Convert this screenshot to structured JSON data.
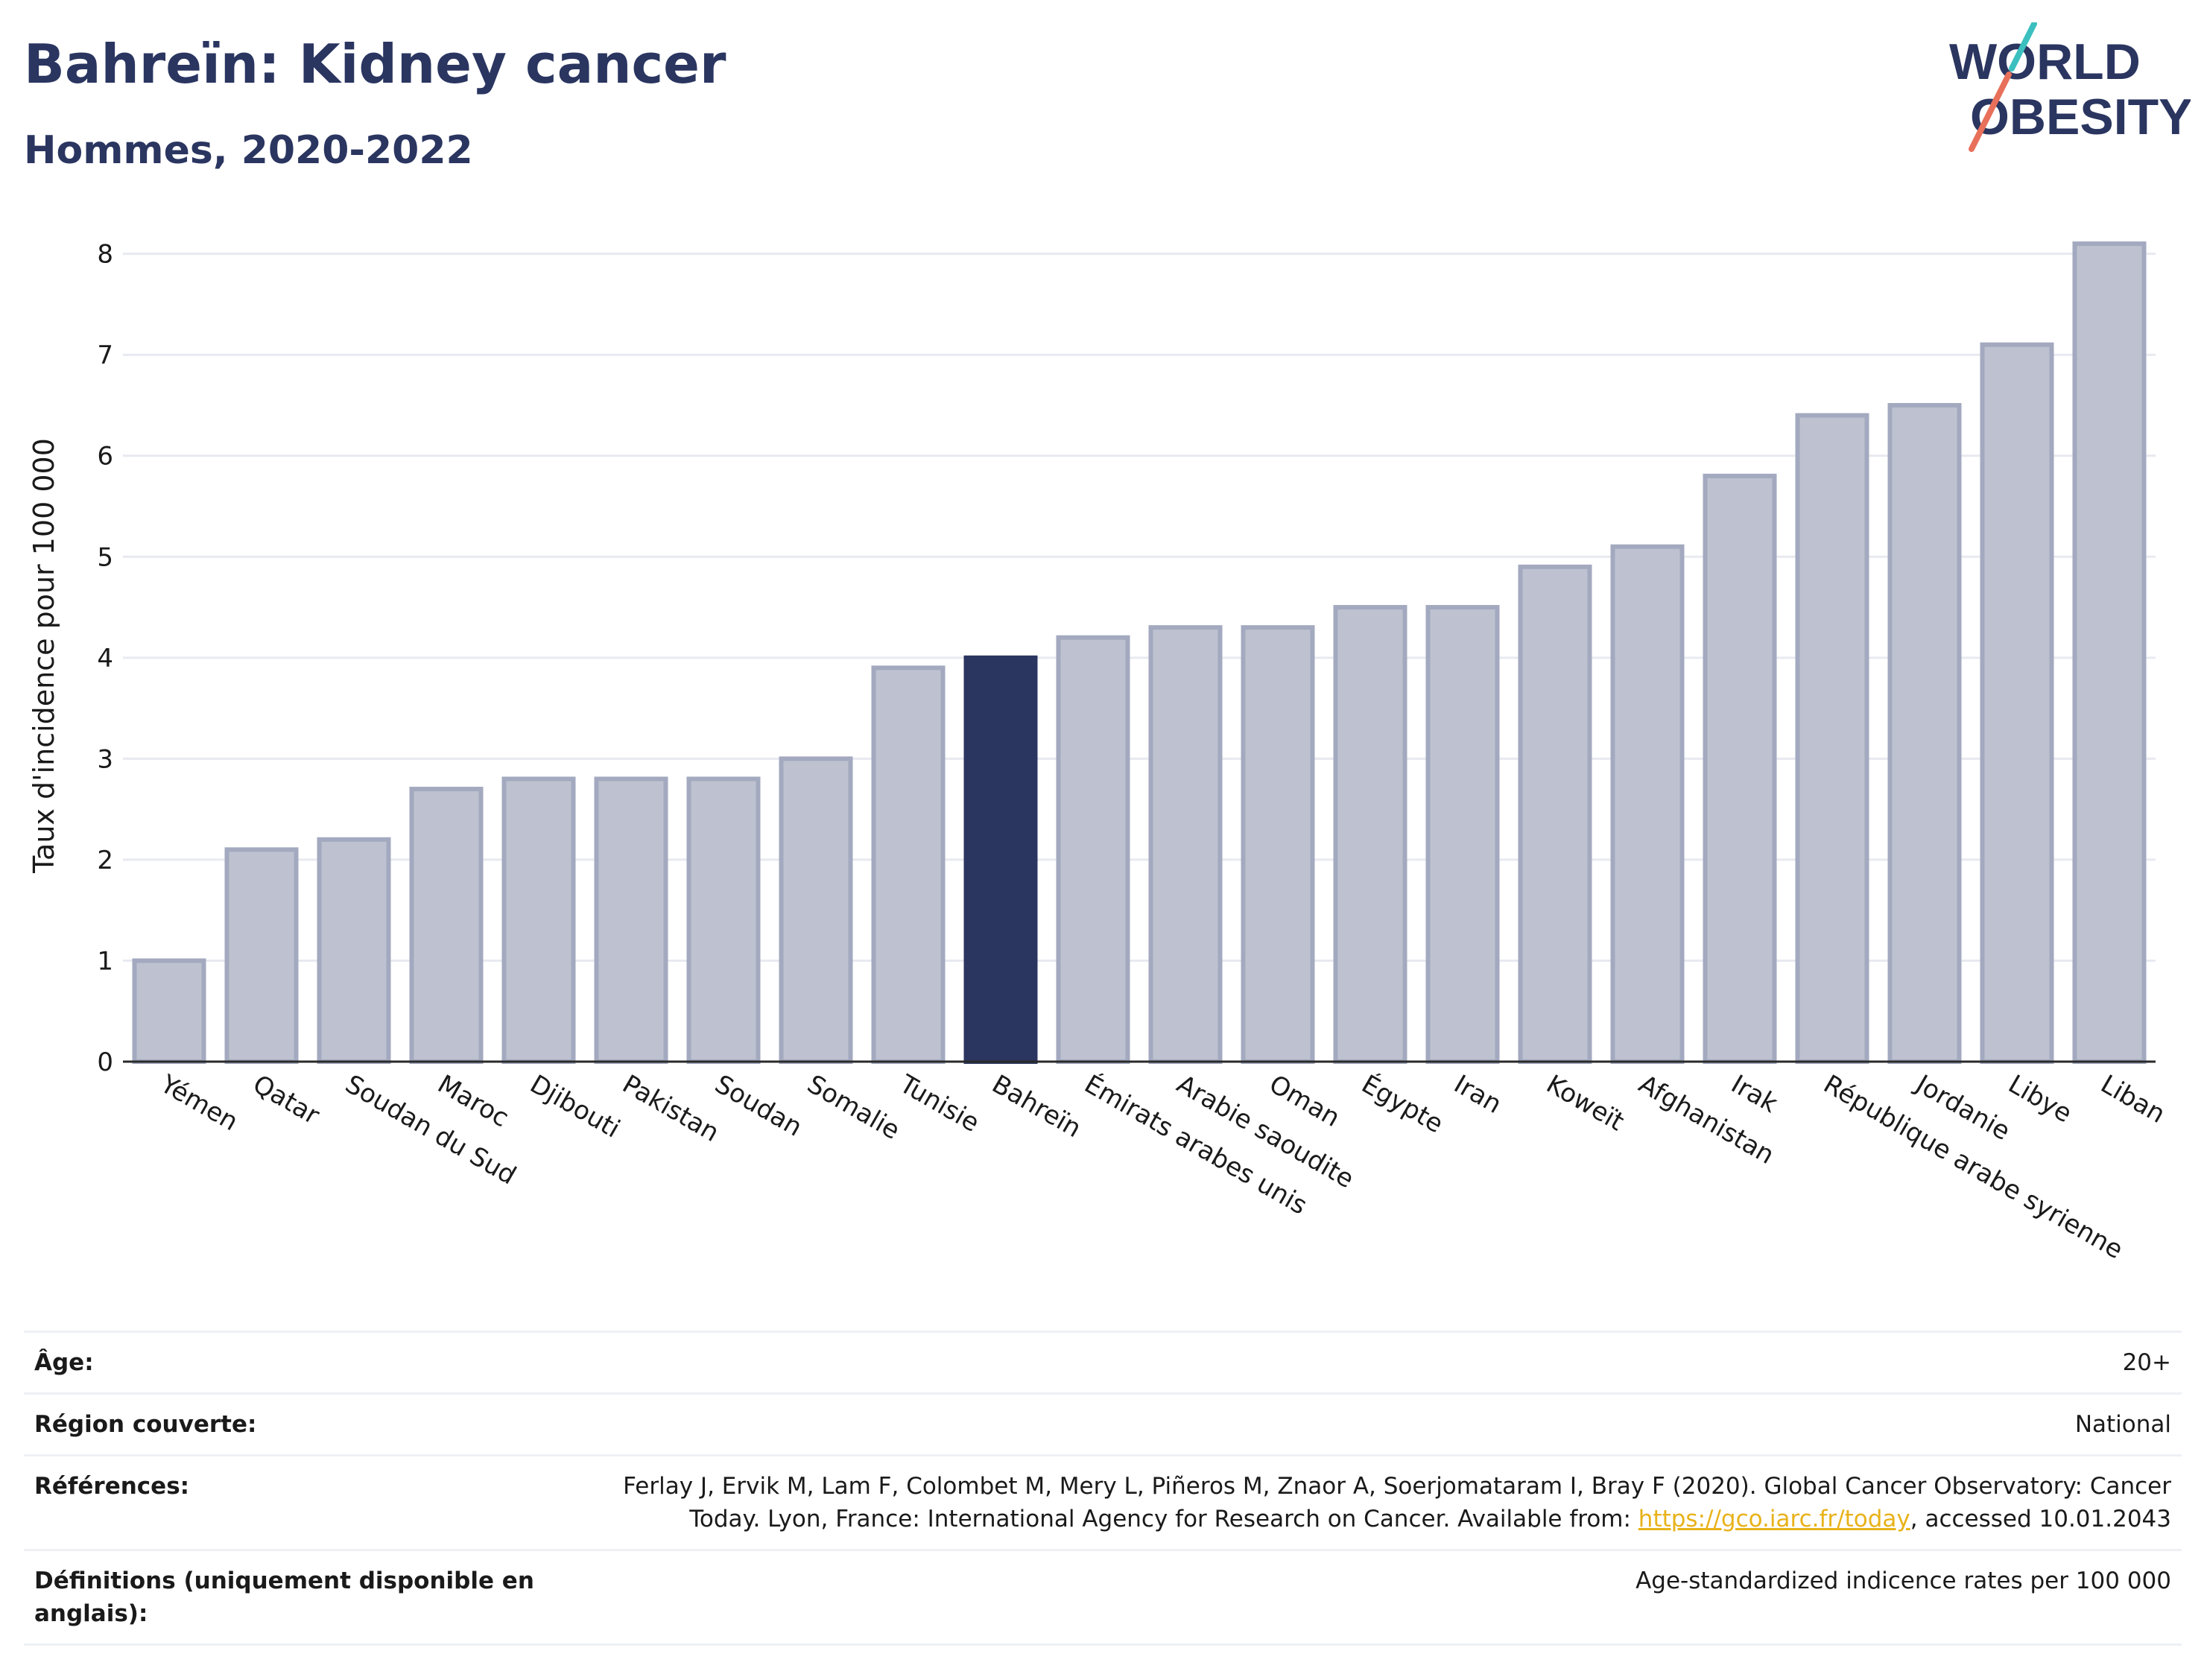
{
  "title": "Bahreïn: Kidney cancer",
  "subtitle": "Hommes, 2020-2022",
  "logo": {
    "line1": "WORLD",
    "line2": "OBESITY"
  },
  "colors": {
    "bar": "#bec2d0",
    "bar_border": "#a3a9bf",
    "highlight": "#2a3560",
    "text": "#2a3560",
    "grid": "#e8eaf0",
    "logo_teal": "#3bbfbf",
    "logo_red": "#e8705a",
    "link": "#e8b21a"
  },
  "chart_data": {
    "type": "bar",
    "ylabel": "Taux d'incidence pour 100 000",
    "xlabel": "",
    "ylim": [
      0,
      8.3
    ],
    "yticks": [
      0,
      1,
      2,
      3,
      4,
      5,
      6,
      7,
      8
    ],
    "grid": true,
    "highlight": "Bahreïn",
    "categories": [
      "Yémen",
      "Qatar",
      "Soudan du Sud",
      "Maroc",
      "Djibouti",
      "Pakistan",
      "Soudan",
      "Somalie",
      "Tunisie",
      "Bahreïn",
      "Émirats arabes unis",
      "Arabie saoudite",
      "Oman",
      "Égypte",
      "Iran",
      "Koweït",
      "Afghanistan",
      "Irak",
      "République arabe syrienne",
      "Jordanie",
      "Libye",
      "Liban"
    ],
    "values": [
      1.0,
      2.1,
      2.2,
      2.7,
      2.8,
      2.8,
      2.8,
      3.0,
      3.9,
      4.0,
      4.2,
      4.3,
      4.3,
      4.5,
      4.5,
      4.9,
      5.1,
      5.8,
      6.4,
      6.5,
      7.1,
      8.1
    ]
  },
  "meta": {
    "age_label": "Âge:",
    "age_value": "20+",
    "region_label": "Région couverte:",
    "region_value": "National",
    "ref_label": "Références:",
    "ref_text_1": "Ferlay J, Ervik M, Lam F, Colombet M, Mery L, Piñeros M, Znaor A, Soerjomataram I, Bray F (2020). Global Cancer Observatory: Cancer Today. Lyon, France: International Agency for Research on Cancer. Available from: ",
    "ref_link": "https://gco.iarc.fr/today",
    "ref_text_2": ", accessed 10.01.2043",
    "def_label": "Définitions (uniquement disponible en anglais):",
    "def_value": "Age-standardized indicence rates per 100 000"
  }
}
